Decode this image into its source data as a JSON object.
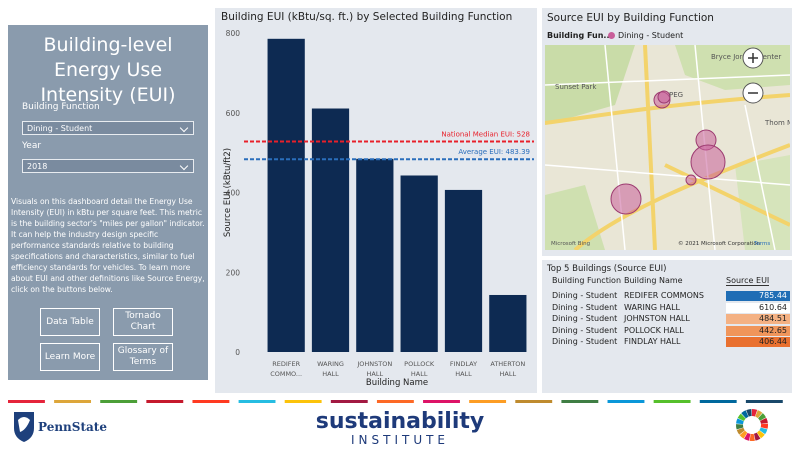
{
  "sidebar": {
    "title": "Building-level Energy Use Intensity (EUI)",
    "filters": [
      {
        "label": "Building Function",
        "value": "Dining - Student"
      },
      {
        "label": "Year",
        "value": "2018"
      }
    ],
    "description": "Visuals on this dashboard detail the Energy Use Intensity (EUI) in kBtu per square feet. This metric is the building sector's \"miles per gallon\" indicator. It can help the industry design specific performance standards relative to building specifications and characteristics, similar to fuel efficiency standards for vehicles. To learn more about EUI and other definitions like Source Energy, click on the buttons below.",
    "buttons": [
      "Data Table",
      "Tornado Chart",
      "Learn More",
      "Glossary of Terms"
    ]
  },
  "chart_data": {
    "type": "bar",
    "title": "Building EUI (kBtu/sq. ft.) by Selected Building Function",
    "x_label": "Building Name",
    "y_label": "Source EUI (kBtu/ft2)",
    "categories": [
      "REDIFER COMMO...",
      "WARING HALL",
      "JOHNSTON HALL",
      "POLLOCK HALL",
      "FINDLAY HALL",
      "ATHERTON HALL"
    ],
    "values": [
      785.44,
      610.64,
      484.51,
      442.65,
      406.44,
      143
    ],
    "color": "#0d2a52",
    "ylim": [
      0,
      800
    ],
    "yticks": [
      0,
      200,
      400,
      600,
      800
    ],
    "grid": false,
    "reference_lines": [
      {
        "label": "National Median EUI: 528",
        "value": 528,
        "color": "#e8202a"
      },
      {
        "label": "Average EUI: 483.39",
        "value": 483.39,
        "color": "#2a6ebb"
      }
    ]
  },
  "map": {
    "title": "Source EUI by Building Function",
    "legend_title": "Building Fun...",
    "legend_item": "Dining - Student",
    "labels": [
      "Bryce Jordan Center",
      "Sunset Park",
      "PEG",
      "Thom Med",
      "Microsoft Bing",
      "© 2021 Microsoft Corporation",
      "Terms"
    ]
  },
  "table": {
    "title": "Top 5 Buildings (Source EUI)",
    "columns": [
      "Building Function",
      "Building Name",
      "Source EUI"
    ],
    "rows": [
      [
        "Dining - Student",
        "REDIFER COMMONS",
        785.44
      ],
      [
        "Dining - Student",
        "WARING HALL",
        610.64
      ],
      [
        "Dining - Student",
        "JOHNSTON HALL",
        484.51
      ],
      [
        "Dining - Student",
        "POLLOCK HALL",
        442.65
      ],
      [
        "Dining - Student",
        "FINDLAY HALL",
        406.44
      ]
    ],
    "cell_colors": [
      "#1f6db5",
      "#ffffff",
      "#f4b183",
      "#f0955a",
      "#e9702f"
    ]
  },
  "footer": {
    "brand": "PennState",
    "institute_top": "sustainability",
    "institute_bottom": "INSTITUTE"
  }
}
